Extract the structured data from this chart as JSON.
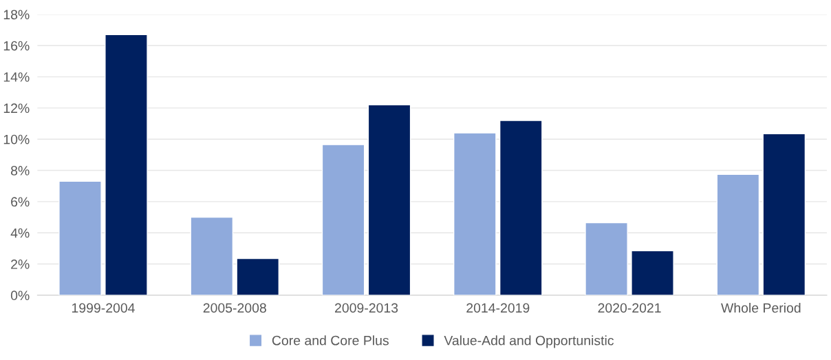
{
  "chart_data": {
    "type": "bar",
    "categories": [
      "1999-2004",
      "2005-2008",
      "2009-2013",
      "2014-2019",
      "2020-2021",
      "Whole Period"
    ],
    "series": [
      {
        "name": "Core and Core Plus",
        "color": "#8faadc",
        "values": [
          7.3,
          5.0,
          9.65,
          10.4,
          4.65,
          7.75
        ]
      },
      {
        "name": "Value-Add and Opportunistic",
        "color": "#002060",
        "values": [
          16.7,
          2.35,
          12.2,
          11.2,
          2.85,
          10.35
        ]
      }
    ],
    "ylim": [
      0,
      18
    ],
    "yticks": [
      {
        "value": 0,
        "label": "0%"
      },
      {
        "value": 2,
        "label": "2%"
      },
      {
        "value": 4,
        "label": "4%"
      },
      {
        "value": 6,
        "label": "6%"
      },
      {
        "value": 8,
        "label": "8%"
      },
      {
        "value": 10,
        "label": "10%"
      },
      {
        "value": 12,
        "label": "12%"
      },
      {
        "value": 14,
        "label": "14%"
      },
      {
        "value": 16,
        "label": "16%"
      },
      {
        "value": 18,
        "label": "18%"
      }
    ],
    "grid": "y",
    "legend": "bottom"
  }
}
